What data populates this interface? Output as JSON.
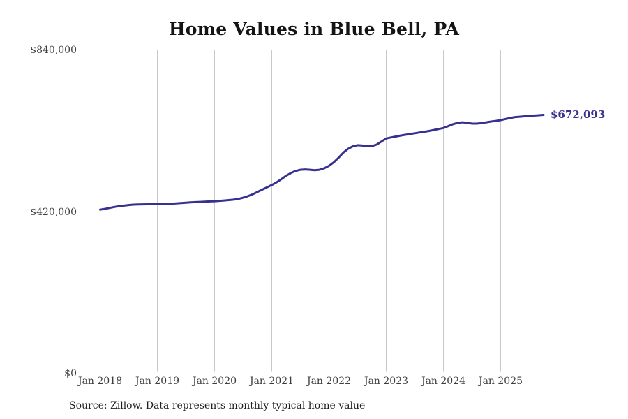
{
  "title": "Home Values in Blue Bell, PA",
  "source_note": "Source: Zillow. Data represents monthly typical home value",
  "end_value_label": "$672,093",
  "colors": {
    "line": "#37308f",
    "end_label": "#37308f",
    "grid": "#c9c9c9",
    "title_text": "#141414",
    "axis_text": "#3d3d3d"
  },
  "chart_data": {
    "type": "line",
    "title": "Home Values in Blue Bell, PA",
    "xlabel": "",
    "ylabel": "",
    "ylim": [
      0,
      840000
    ],
    "grid": "vertical-only",
    "legend": "none",
    "x_ticks": [
      "Jan 2018",
      "Jan 2019",
      "Jan 2020",
      "Jan 2021",
      "Jan 2022",
      "Jan 2023",
      "Jan 2024",
      "Jan 2025"
    ],
    "y_ticks": [
      {
        "label": "$840,000",
        "value": 840000
      },
      {
        "label": "$420,000",
        "value": 420000
      },
      {
        "label": "$0",
        "value": 0
      }
    ],
    "series": [
      {
        "name": "Monthly typical home value",
        "start_month": "2018-01",
        "end_month": "2025-10",
        "frequency": "monthly",
        "last_value": 672093,
        "values": [
          426000,
          428000,
          430500,
          433000,
          435000,
          436500,
          438000,
          439000,
          439500,
          439800,
          440000,
          440000,
          440000,
          440300,
          440800,
          441500,
          442300,
          443200,
          444000,
          444800,
          445500,
          446200,
          446800,
          447400,
          448000,
          448800,
          449700,
          450800,
          452000,
          454000,
          457000,
          461000,
          466000,
          472000,
          478000,
          484000,
          490000,
          497000,
          505000,
          514000,
          521000,
          526500,
          529500,
          530500,
          529500,
          528500,
          529500,
          533500,
          540000,
          549000,
          561000,
          574000,
          584000,
          590500,
          593500,
          592500,
          590500,
          591000,
          595000,
          603000,
          611000,
          613500,
          616000,
          618500,
          620500,
          622500,
          624500,
          626500,
          628500,
          630500,
          633000,
          635500,
          638000,
          643000,
          648000,
          651500,
          653000,
          651500,
          649500,
          649500,
          651000,
          653000,
          655000,
          656500,
          658500,
          661500,
          664000,
          666500,
          667500,
          668500,
          669500,
          670300,
          671200,
          672093
        ]
      }
    ]
  }
}
